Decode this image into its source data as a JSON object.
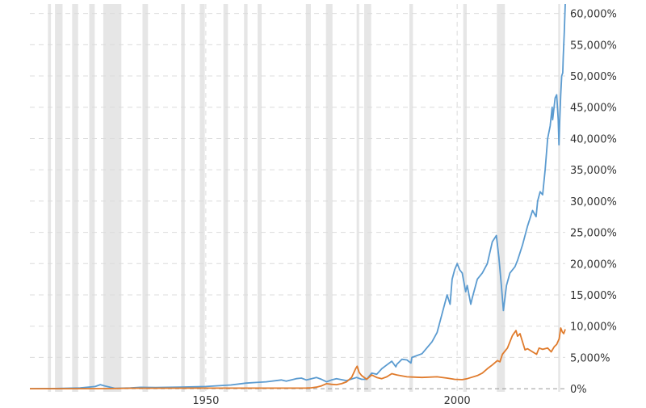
{
  "chart_data": {
    "type": "line",
    "title": "",
    "xlabel": "",
    "ylabel": "",
    "xlim": [
      1915,
      2021.5
    ],
    "ylim": [
      -500,
      61500
    ],
    "grid": true,
    "legend": "none",
    "x_ticks": [
      1950,
      2000
    ],
    "x_tick_labels": [
      "1950",
      "2000"
    ],
    "y_ticks": [
      0,
      5000,
      10000,
      15000,
      20000,
      25000,
      30000,
      35000,
      40000,
      45000,
      50000,
      55000,
      60000
    ],
    "y_tick_labels": [
      "0%",
      "5,000%",
      "10,000%",
      "15,000%",
      "20,000%",
      "25,000%",
      "30,000%",
      "35,000%",
      "40,000%",
      "45,000%",
      "50,000%",
      "55,000%",
      "60,000%"
    ],
    "recessions": [
      [
        1918.6,
        1919.2
      ],
      [
        1920.0,
        1921.5
      ],
      [
        1923.4,
        1924.6
      ],
      [
        1926.8,
        1927.9
      ],
      [
        1929.6,
        1933.2
      ],
      [
        1937.4,
        1938.5
      ],
      [
        1945.1,
        1945.8
      ],
      [
        1948.8,
        1949.8
      ],
      [
        1953.5,
        1954.4
      ],
      [
        1957.6,
        1958.3
      ],
      [
        1960.3,
        1961.1
      ],
      [
        1969.9,
        1970.9
      ],
      [
        1973.9,
        1975.2
      ],
      [
        1980.0,
        1980.5
      ],
      [
        1981.5,
        1982.9
      ],
      [
        1990.5,
        1991.2
      ],
      [
        2001.2,
        2001.9
      ],
      [
        2007.9,
        2009.5
      ],
      [
        2020.1,
        2020.5
      ]
    ],
    "series": [
      {
        "color": "#5b9bd0",
        "points": [
          [
            1915,
            0
          ],
          [
            1920,
            30
          ],
          [
            1925,
            120
          ],
          [
            1928,
            350
          ],
          [
            1929,
            650
          ],
          [
            1930,
            420
          ],
          [
            1932,
            60
          ],
          [
            1935,
            120
          ],
          [
            1937,
            220
          ],
          [
            1940,
            180
          ],
          [
            1945,
            260
          ],
          [
            1950,
            350
          ],
          [
            1955,
            600
          ],
          [
            1958,
            900
          ],
          [
            1960,
            1000
          ],
          [
            1962,
            1100
          ],
          [
            1965,
            1400
          ],
          [
            1966,
            1200
          ],
          [
            1968,
            1600
          ],
          [
            1969,
            1700
          ],
          [
            1970,
            1400
          ],
          [
            1972,
            1800
          ],
          [
            1973,
            1500
          ],
          [
            1974,
            1100
          ],
          [
            1975,
            1400
          ],
          [
            1976,
            1600
          ],
          [
            1978,
            1300
          ],
          [
            1980,
            1800
          ],
          [
            1981,
            1500
          ],
          [
            1982,
            1500
          ],
          [
            1983,
            2500
          ],
          [
            1984,
            2300
          ],
          [
            1985,
            3200
          ],
          [
            1986,
            3800
          ],
          [
            1987,
            4400
          ],
          [
            1987.8,
            3500
          ],
          [
            1988,
            3900
          ],
          [
            1989,
            4700
          ],
          [
            1990,
            4600
          ],
          [
            1990.8,
            4100
          ],
          [
            1991,
            5000
          ],
          [
            1993,
            5600
          ],
          [
            1995,
            7500
          ],
          [
            1996,
            9000
          ],
          [
            1997,
            12000
          ],
          [
            1998,
            15000
          ],
          [
            1998.6,
            13500
          ],
          [
            1999,
            17500
          ],
          [
            1999.5,
            19000
          ],
          [
            2000,
            20000
          ],
          [
            2000.5,
            19000
          ],
          [
            2001,
            18500
          ],
          [
            2001.7,
            15500
          ],
          [
            2002,
            16500
          ],
          [
            2002.7,
            13500
          ],
          [
            2003,
            14500
          ],
          [
            2004,
            17500
          ],
          [
            2005,
            18500
          ],
          [
            2006,
            20000
          ],
          [
            2007,
            23500
          ],
          [
            2007.8,
            24500
          ],
          [
            2008.3,
            21000
          ],
          [
            2008.8,
            16500
          ],
          [
            2009.2,
            12500
          ],
          [
            2009.8,
            16500
          ],
          [
            2010.5,
            18500
          ],
          [
            2011.5,
            19500
          ],
          [
            2012,
            20500
          ],
          [
            2013,
            23000
          ],
          [
            2014,
            26000
          ],
          [
            2015,
            28500
          ],
          [
            2015.7,
            27500
          ],
          [
            2016,
            30000
          ],
          [
            2016.5,
            31500
          ],
          [
            2017,
            31000
          ],
          [
            2017.5,
            35000
          ],
          [
            2018,
            40000
          ],
          [
            2018.5,
            42000
          ],
          [
            2018.9,
            45000
          ],
          [
            2019,
            43000
          ],
          [
            2019.5,
            46500
          ],
          [
            2019.8,
            47000
          ],
          [
            2020.1,
            43000
          ],
          [
            2020.25,
            39000
          ],
          [
            2020.4,
            43000
          ],
          [
            2020.6,
            47000
          ],
          [
            2020.8,
            50000
          ],
          [
            2021,
            50500
          ],
          [
            2021.1,
            53000
          ],
          [
            2021.3,
            57000
          ],
          [
            2021.5,
            61500
          ]
        ]
      },
      {
        "color": "#e07b2c",
        "points": [
          [
            1915,
            0
          ],
          [
            1920,
            10
          ],
          [
            1930,
            20
          ],
          [
            1935,
            80
          ],
          [
            1940,
            80
          ],
          [
            1950,
            90
          ],
          [
            1960,
            90
          ],
          [
            1965,
            90
          ],
          [
            1970,
            110
          ],
          [
            1971,
            150
          ],
          [
            1972,
            250
          ],
          [
            1973,
            450
          ],
          [
            1974,
            800
          ],
          [
            1975,
            700
          ],
          [
            1976,
            650
          ],
          [
            1977,
            800
          ],
          [
            1978,
            1100
          ],
          [
            1979,
            1800
          ],
          [
            1979.8,
            3200
          ],
          [
            1980.1,
            3600
          ],
          [
            1980.5,
            2600
          ],
          [
            1981,
            2100
          ],
          [
            1982,
            1500
          ],
          [
            1983,
            2200
          ],
          [
            1984,
            1800
          ],
          [
            1985,
            1600
          ],
          [
            1986,
            1900
          ],
          [
            1987,
            2400
          ],
          [
            1988,
            2200
          ],
          [
            1990,
            1900
          ],
          [
            1993,
            1800
          ],
          [
            1996,
            1900
          ],
          [
            1998,
            1700
          ],
          [
            1999.5,
            1500
          ],
          [
            2001,
            1450
          ],
          [
            2002,
            1600
          ],
          [
            2003,
            1850
          ],
          [
            2004,
            2100
          ],
          [
            2005,
            2500
          ],
          [
            2006,
            3200
          ],
          [
            2007,
            3800
          ],
          [
            2008,
            4500
          ],
          [
            2008.5,
            4300
          ],
          [
            2009,
            5500
          ],
          [
            2010,
            6500
          ],
          [
            2011,
            8500
          ],
          [
            2011.7,
            9300
          ],
          [
            2012,
            8400
          ],
          [
            2012.5,
            8800
          ],
          [
            2013,
            7500
          ],
          [
            2013.5,
            6200
          ],
          [
            2014,
            6400
          ],
          [
            2015,
            5900
          ],
          [
            2015.8,
            5500
          ],
          [
            2016.3,
            6500
          ],
          [
            2017,
            6300
          ],
          [
            2018,
            6500
          ],
          [
            2018.7,
            5900
          ],
          [
            2019.3,
            6700
          ],
          [
            2019.8,
            7100
          ],
          [
            2020.3,
            8000
          ],
          [
            2020.6,
            9700
          ],
          [
            2020.9,
            9100
          ],
          [
            2021.2,
            8800
          ],
          [
            2021.5,
            9500
          ]
        ]
      }
    ]
  }
}
